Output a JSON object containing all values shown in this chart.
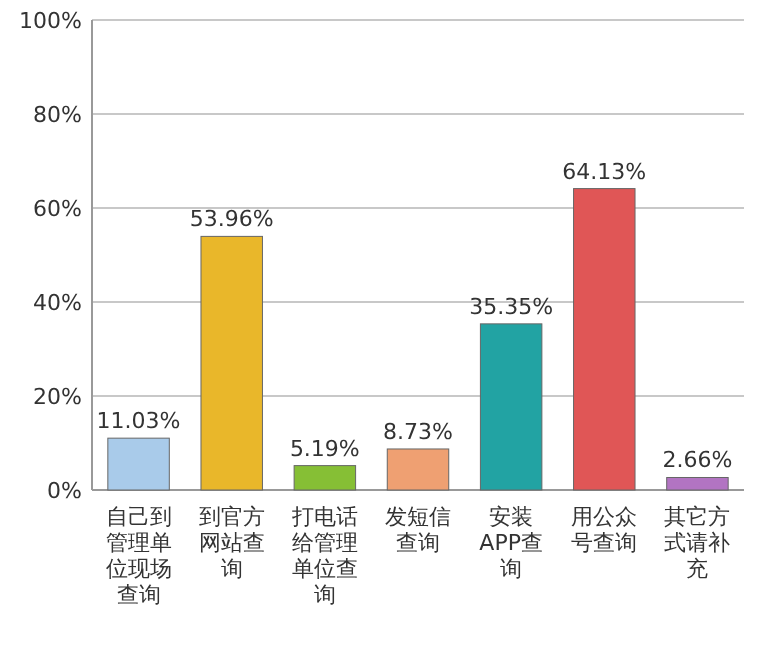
{
  "chart_data": {
    "type": "bar",
    "categories": [
      "自己到管理单位现场查询",
      "到官方网站查询",
      "打电话给管理单位查询",
      "发短信查询",
      "安装APP查询",
      "用公众号查询",
      "其它方式请补充"
    ],
    "values": [
      11.03,
      53.96,
      5.19,
      8.73,
      35.35,
      64.13,
      2.66
    ],
    "value_labels": [
      "11.03%",
      "53.96%",
      "5.19%",
      "8.73%",
      "35.35%",
      "64.13%",
      "2.66%"
    ],
    "colors": [
      "#a9cbea",
      "#e9b72a",
      "#86bf35",
      "#efa072",
      "#22a3a3",
      "#e05656",
      "#b274c2"
    ],
    "ylim": [
      0,
      100
    ],
    "yticks": [
      {
        "value": 0,
        "label": "0%"
      },
      {
        "value": 20,
        "label": "20%"
      },
      {
        "value": 40,
        "label": "40%"
      },
      {
        "value": 60,
        "label": "60%"
      },
      {
        "value": 80,
        "label": "80%"
      },
      {
        "value": 100,
        "label": "100%"
      }
    ],
    "grid": "y"
  }
}
